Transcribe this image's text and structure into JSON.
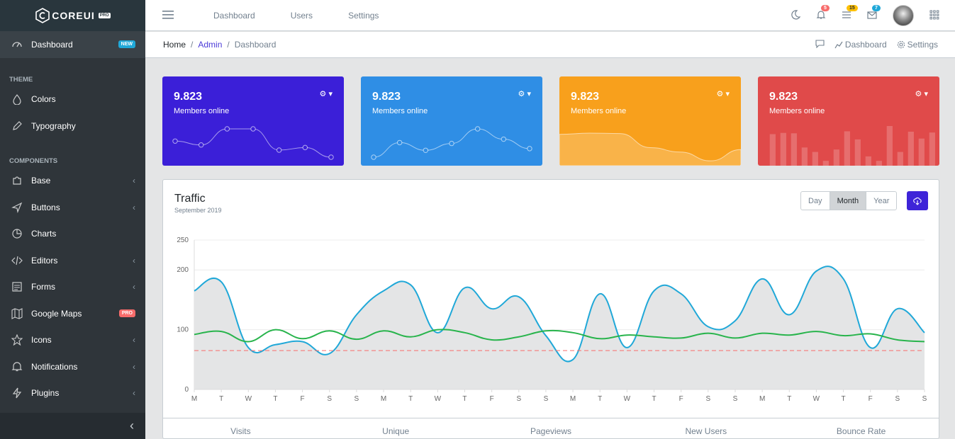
{
  "brand": {
    "name": "COREUI",
    "pro": "PRO"
  },
  "sidebar": {
    "items": [
      {
        "type": "item",
        "label": "Dashboard",
        "icon": "speedometer-icon",
        "badge": "NEW",
        "badge_color": "#20a8d8",
        "active": true
      },
      {
        "type": "title",
        "label": "THEME"
      },
      {
        "type": "item",
        "label": "Colors",
        "icon": "drop-icon"
      },
      {
        "type": "item",
        "label": "Typography",
        "icon": "pencil-icon"
      },
      {
        "type": "title",
        "label": "COMPONENTS"
      },
      {
        "type": "item",
        "label": "Base",
        "icon": "puzzle-icon",
        "chevron": true
      },
      {
        "type": "item",
        "label": "Buttons",
        "icon": "cursor-icon",
        "chevron": true
      },
      {
        "type": "item",
        "label": "Charts",
        "icon": "chart-pie-icon"
      },
      {
        "type": "item",
        "label": "Editors",
        "icon": "code-icon",
        "chevron": true
      },
      {
        "type": "item",
        "label": "Forms",
        "icon": "notes-icon",
        "chevron": true
      },
      {
        "type": "item",
        "label": "Google Maps",
        "icon": "map-icon",
        "badge": "PRO",
        "badge_color": "#f86c6b"
      },
      {
        "type": "item",
        "label": "Icons",
        "icon": "star-icon",
        "chevron": true
      },
      {
        "type": "item",
        "label": "Notifications",
        "icon": "bell-icon",
        "chevron": true
      },
      {
        "type": "item",
        "label": "Plugins",
        "icon": "bolt-icon",
        "chevron": true
      }
    ],
    "minimizer": "‹"
  },
  "header": {
    "nav": [
      "Dashboard",
      "Users",
      "Settings"
    ],
    "notifications": {
      "bell": "5",
      "list": "15",
      "mail": "7"
    },
    "badge_colors": {
      "bell": "#f86c6b",
      "list": "#ffc107",
      "mail": "#20a8d8"
    }
  },
  "breadcrumb": {
    "home": "Home",
    "admin": "Admin",
    "current": "Dashboard",
    "right_dashboard": "Dashboard",
    "right_settings": "Settings"
  },
  "cards": [
    {
      "value": "9.823",
      "label": "Members online",
      "color": "#3b1fd8",
      "chart": "line-points",
      "points": [
        65,
        59,
        84,
        84,
        51,
        55,
        40
      ]
    },
    {
      "value": "9.823",
      "label": "Members online",
      "color": "#2f8ee5",
      "chart": "line-points",
      "points": [
        1,
        18,
        9,
        17,
        34,
        22,
        11
      ]
    },
    {
      "value": "9.823",
      "label": "Members online",
      "color": "#f8a01c",
      "chart": "area",
      "points": [
        78,
        81,
        80,
        45,
        34,
        12,
        40
      ]
    },
    {
      "value": "9.823",
      "label": "Members online",
      "color": "#e04a4a",
      "chart": "bar",
      "points": [
        78,
        81,
        80,
        45,
        34,
        12,
        40,
        85,
        65,
        23,
        12,
        98,
        34,
        84,
        67,
        82
      ]
    }
  ],
  "traffic": {
    "title": "Traffic",
    "subtitle": "September 2019",
    "periods": [
      "Day",
      "Month",
      "Year"
    ],
    "selected_period": "Month",
    "footer": [
      "Visits",
      "Unique",
      "Pageviews",
      "New Users",
      "Bounce Rate"
    ]
  },
  "chart_data": {
    "type": "line",
    "x": [
      "M",
      "T",
      "W",
      "T",
      "F",
      "S",
      "S",
      "M",
      "T",
      "W",
      "T",
      "F",
      "S",
      "S",
      "M",
      "T",
      "W",
      "T",
      "F",
      "S",
      "S",
      "M",
      "T",
      "W",
      "T",
      "F",
      "S",
      "S"
    ],
    "yticks": [
      0,
      100,
      200,
      250
    ],
    "ylim": [
      0,
      250
    ],
    "series": [
      {
        "values": [
          165,
          180,
          70,
          75,
          80,
          60,
          125,
          165,
          175,
          95,
          170,
          135,
          155,
          90,
          50,
          160,
          70,
          165,
          160,
          105,
          115,
          185,
          125,
          198,
          185,
          70,
          135,
          95
        ],
        "color": "#20a8d8",
        "fill": "#e4e5e6"
      },
      {
        "values": [
          92,
          97,
          80,
          100,
          85,
          98,
          84,
          98,
          88,
          100,
          95,
          83,
          88,
          98,
          95,
          85,
          91,
          88,
          86,
          94,
          86,
          94,
          91,
          97,
          90,
          93,
          83,
          80
        ],
        "color": "#28b44c"
      },
      {
        "values": [
          65,
          65,
          65,
          65,
          65,
          65,
          65,
          65,
          65,
          65,
          65,
          65,
          65,
          65,
          65,
          65,
          65,
          65,
          65,
          65,
          65,
          65,
          65,
          65,
          65,
          65,
          65,
          65
        ],
        "color": "#f86c6b",
        "dashed": true
      }
    ]
  }
}
